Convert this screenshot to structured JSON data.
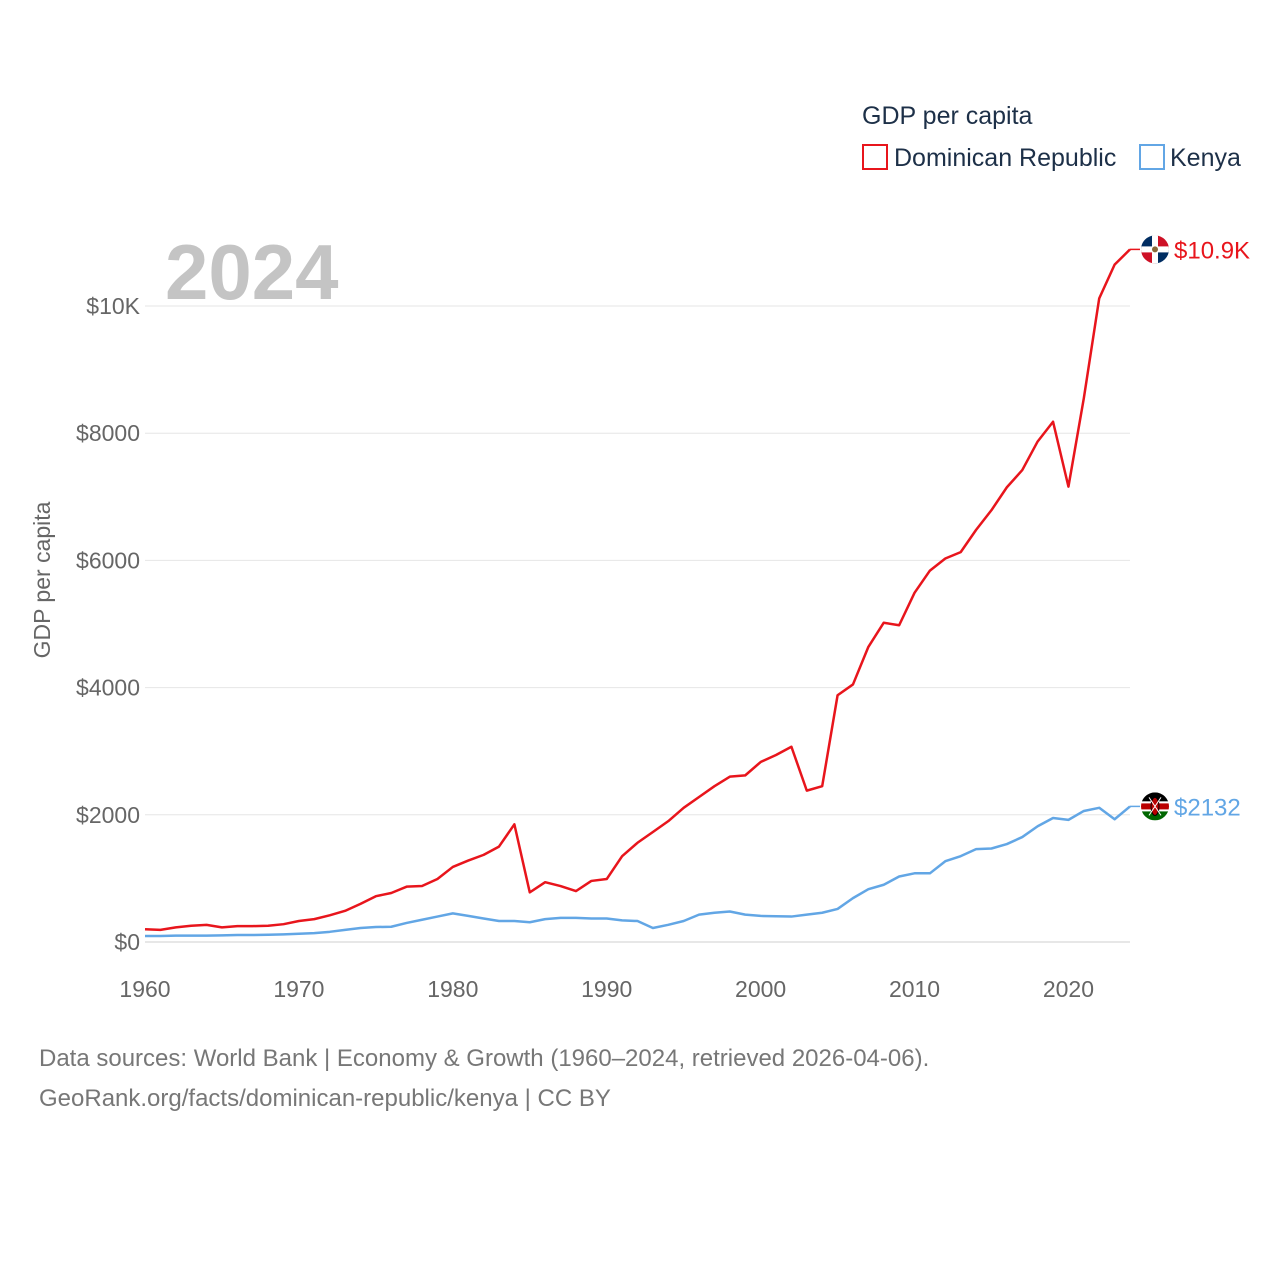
{
  "chart_data": {
    "type": "line",
    "title": "GDP per capita",
    "year_label": "2024",
    "ylabel": "GDP per capita",
    "xlabel": "",
    "xlim": [
      1960,
      2024
    ],
    "ylim": [
      0,
      10900
    ],
    "x_ticks": [
      1960,
      1970,
      1980,
      1990,
      2000,
      2010,
      2020
    ],
    "x_tick_labels": [
      "1960",
      "1970",
      "1980",
      "1990",
      "2000",
      "2010",
      "2020"
    ],
    "y_ticks": [
      0,
      2000,
      4000,
      6000,
      8000,
      10000
    ],
    "y_tick_labels": [
      "$0",
      "$2000",
      "$4000",
      "$6000",
      "$8000",
      "$10K"
    ],
    "grid": true,
    "legend_position": "top-right",
    "x": [
      1960,
      1961,
      1962,
      1963,
      1964,
      1965,
      1966,
      1967,
      1968,
      1969,
      1970,
      1971,
      1972,
      1973,
      1974,
      1975,
      1976,
      1977,
      1978,
      1979,
      1980,
      1981,
      1982,
      1983,
      1984,
      1985,
      1986,
      1987,
      1988,
      1989,
      1990,
      1991,
      1992,
      1993,
      1994,
      1995,
      1996,
      1997,
      1998,
      1999,
      2000,
      2001,
      2002,
      2003,
      2004,
      2005,
      2006,
      2007,
      2008,
      2009,
      2010,
      2011,
      2012,
      2013,
      2014,
      2015,
      2016,
      2017,
      2018,
      2019,
      2020,
      2021,
      2022,
      2023,
      2024
    ],
    "series": [
      {
        "name": "Dominican Republic",
        "color": "#e8151c",
        "end_label": "$10.9K",
        "flag": "dominican-republic-flag-icon",
        "values": [
          200,
          190,
          230,
          255,
          270,
          230,
          250,
          250,
          255,
          280,
          330,
          360,
          420,
          490,
          600,
          720,
          770,
          870,
          880,
          990,
          1180,
          1280,
          1370,
          1500,
          1850,
          780,
          940,
          880,
          800,
          960,
          990,
          1350,
          1560,
          1730,
          1900,
          2110,
          2280,
          2450,
          2600,
          2620,
          2830,
          2940,
          3070,
          2380,
          2450,
          3880,
          4050,
          4640,
          5020,
          4980,
          5490,
          5840,
          6030,
          6130,
          6480,
          6790,
          7150,
          7420,
          7870,
          8180,
          7160,
          8550,
          10120,
          10650,
          10890
        ]
      },
      {
        "name": "Kenya",
        "color": "#62a6e5",
        "end_label": "$2132",
        "flag": "kenya-flag-icon",
        "values": [
          95,
          95,
          100,
          100,
          100,
          105,
          110,
          110,
          115,
          120,
          130,
          140,
          160,
          190,
          220,
          235,
          240,
          300,
          350,
          400,
          450,
          410,
          370,
          330,
          330,
          310,
          360,
          380,
          380,
          370,
          370,
          340,
          330,
          220,
          270,
          330,
          430,
          460,
          480,
          430,
          410,
          405,
          400,
          430,
          460,
          520,
          690,
          830,
          900,
          1030,
          1080,
          1080,
          1270,
          1350,
          1460,
          1470,
          1540,
          1650,
          1820,
          1950,
          1920,
          2060,
          2110,
          1930,
          2132
        ]
      }
    ]
  },
  "source": {
    "line1": "Data sources: World Bank | Economy & Growth (1960–2024, retrieved 2026-04-06).",
    "line2": "GeoRank.org/facts/dominican-republic/kenya | CC BY"
  }
}
